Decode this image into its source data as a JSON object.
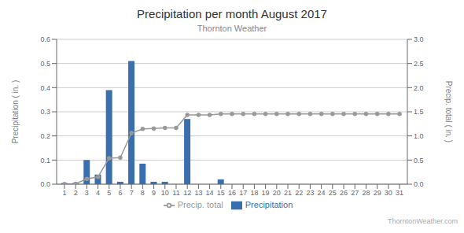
{
  "chart_data": {
    "type": "bar",
    "title": "Precipitation per month August 2017",
    "subtitle": "Thornton Weather",
    "annotations": [
      "ThorntonWeather.com"
    ],
    "ylabel": "Precipitation ( in. )",
    "y2label": "Precip. total ( in. )",
    "x": [
      1,
      2,
      3,
      4,
      5,
      6,
      7,
      8,
      9,
      10,
      11,
      12,
      13,
      14,
      15,
      16,
      17,
      18,
      19,
      20,
      21,
      22,
      23,
      24,
      25,
      26,
      27,
      28,
      29,
      30,
      31
    ],
    "xlim": [
      0.3,
      31.7
    ],
    "xticks": [
      1,
      2,
      3,
      4,
      5,
      6,
      7,
      8,
      9,
      10,
      11,
      12,
      13,
      14,
      15,
      16,
      17,
      18,
      19,
      20,
      21,
      22,
      23,
      24,
      25,
      26,
      27,
      28,
      29,
      30,
      31
    ],
    "ylim": [
      0,
      0.6
    ],
    "yticks": [
      {
        "value": 0,
        "label": "0.0"
      },
      0.1,
      0.2,
      0.3,
      0.4,
      0.5,
      0.6
    ],
    "y2lim": [
      0,
      3.0
    ],
    "y2ticks": [
      {
        "value": 0,
        "label": "0.0"
      },
      0.5,
      {
        "value": 1,
        "label": "1.0"
      },
      1.5,
      {
        "value": 2,
        "label": "2.0"
      },
      2.5,
      {
        "value": 3,
        "label": "3.0"
      }
    ],
    "grid": true,
    "legend": "bottom",
    "series": [
      {
        "name": "Precipitation",
        "type": "bar",
        "color": "#3a6fad",
        "values": [
          0.005,
          0.005,
          0.1,
          0.04,
          0.39,
          0.01,
          0.51,
          0.085,
          0.01,
          0.01,
          0.0,
          0.27,
          0.0,
          0.0,
          0.02,
          0.0,
          0.0,
          0.0,
          0.0,
          0.0,
          0.0,
          0.0,
          0.0,
          0.0,
          0.0,
          0.0,
          0.0,
          0.0,
          0.0,
          0.0,
          0.0
        ]
      },
      {
        "name": "Precip. total",
        "type": "line",
        "axis": "y2",
        "color": "#999999",
        "marker": "circle",
        "values": [
          0.005,
          0.01,
          0.11,
          0.15,
          0.54,
          0.55,
          1.06,
          1.145,
          1.155,
          1.165,
          1.165,
          1.435,
          1.435,
          1.435,
          1.455,
          1.455,
          1.455,
          1.455,
          1.455,
          1.455,
          1.455,
          1.455,
          1.455,
          1.455,
          1.455,
          1.455,
          1.455,
          1.455,
          1.455,
          1.455,
          1.455
        ]
      }
    ]
  }
}
